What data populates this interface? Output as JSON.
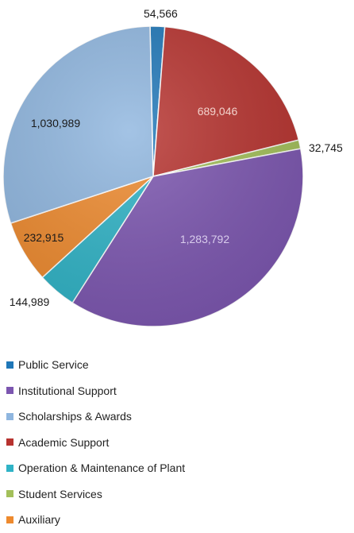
{
  "chart_data": {
    "type": "pie",
    "title": "",
    "legend_position": "bottom",
    "slices": [
      {
        "name": "Public Service",
        "value": 54566,
        "label": "54,566",
        "color": "#1f77b8"
      },
      {
        "name": "Academic Support",
        "value": 689046,
        "label": "689,046",
        "color": "#b7332f"
      },
      {
        "name": "Student Services",
        "value": 32745,
        "label": "32,745",
        "color": "#a3c05a"
      },
      {
        "name": "Institutional Support",
        "value": 1283792,
        "label": "1,283,792",
        "color": "#7c56b0"
      },
      {
        "name": "Operation & Maintenance of Plant",
        "value": 144989,
        "label": "144,989",
        "color": "#2fb3c6"
      },
      {
        "name": "Auxiliary",
        "value": 232915,
        "label": "232,915",
        "color": "#ee8a2e"
      },
      {
        "name": "Scholarships & Awards",
        "value": 1030989,
        "label": "1,030,989",
        "color": "#8fb6df"
      }
    ],
    "legend_order": [
      "Public Service",
      "Institutional Support",
      "Scholarships & Awards",
      "Academic Support",
      "Operation & Maintenance of Plant",
      "Student Services",
      "Auxiliary"
    ]
  }
}
